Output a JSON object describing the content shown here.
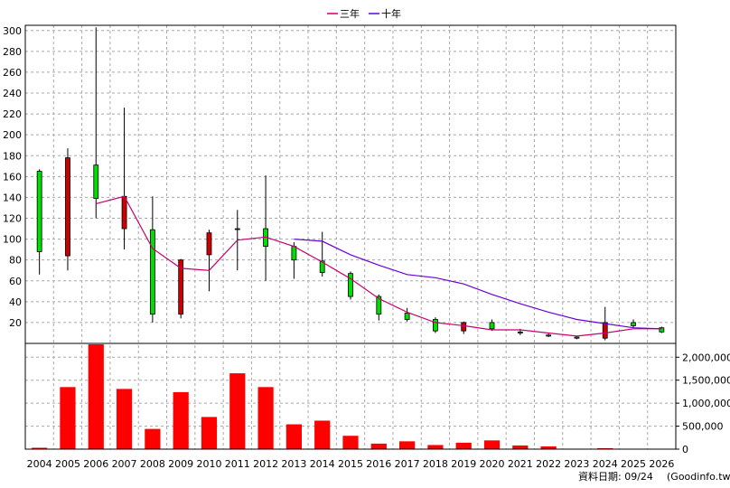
{
  "legend": {
    "items": [
      {
        "label": "三年",
        "color": "#c8006e"
      },
      {
        "label": "十年",
        "color": "#6a00d8"
      }
    ]
  },
  "footer": {
    "date_label": "資料日期: 09/24",
    "source": "(Goodinfo.tw)"
  },
  "chart_data": {
    "type": "candlestick",
    "categories": [
      "2004",
      "2005",
      "2006",
      "2007",
      "2008",
      "2009",
      "2010",
      "2011",
      "2012",
      "2013",
      "2014",
      "2015",
      "2016",
      "2017",
      "2018",
      "2019",
      "2020",
      "2021",
      "2022",
      "2023",
      "2024",
      "2025",
      "2026"
    ],
    "price_axis": {
      "ylim": [
        0,
        305
      ],
      "ticks": [
        20,
        40,
        60,
        80,
        100,
        120,
        140,
        160,
        180,
        200,
        220,
        240,
        260,
        280,
        300
      ]
    },
    "volume_axis": {
      "ylim": [
        0,
        2300000
      ],
      "ticks": [
        0,
        500000,
        1000000,
        1500000,
        2000000
      ],
      "tick_labels": [
        "0",
        "500,000",
        "1,000,000",
        "1,500,000",
        "2,000,000"
      ]
    },
    "colors": {
      "up": "#00dd00",
      "down": "#cc0000",
      "volume": "#ff0000"
    },
    "candles": [
      {
        "open": 88,
        "close": 165,
        "high": 167,
        "low": 66
      },
      {
        "open": 178,
        "close": 84,
        "high": 187,
        "low": 70
      },
      {
        "open": 139,
        "close": 171,
        "high": 303,
        "low": 120
      },
      {
        "open": 141,
        "close": 110,
        "high": 226,
        "low": 90
      },
      {
        "open": 28,
        "close": 109,
        "high": 141,
        "low": 20
      },
      {
        "open": 80,
        "close": 28,
        "high": 81,
        "low": 24
      },
      {
        "open": 106,
        "close": 85,
        "high": 109,
        "low": 50
      },
      {
        "open": 110,
        "close": 110,
        "high": 128,
        "low": 70
      },
      {
        "open": 93,
        "close": 110,
        "high": 161,
        "low": 60
      },
      {
        "open": 80,
        "close": 93,
        "high": 97,
        "low": 62
      },
      {
        "open": 68,
        "close": 79,
        "high": 107,
        "low": 64
      },
      {
        "open": 45,
        "close": 67,
        "high": 69,
        "low": 42
      },
      {
        "open": 28,
        "close": 45,
        "high": 47,
        "low": 22
      },
      {
        "open": 23,
        "close": 29,
        "high": 34,
        "low": 21
      },
      {
        "open": 12,
        "close": 23,
        "high": 25,
        "low": 10
      },
      {
        "open": 20,
        "close": 12,
        "high": 21,
        "low": 9
      },
      {
        "open": 14,
        "close": 20,
        "high": 23,
        "low": 12
      },
      {
        "open": 10,
        "close": 11,
        "high": 14,
        "low": 8
      },
      {
        "open": 7,
        "close": 8,
        "high": 10,
        "low": 6
      },
      {
        "open": 5,
        "close": 6,
        "high": 7,
        "low": 4
      },
      {
        "open": 20,
        "close": 5,
        "high": 35,
        "low": 3
      },
      {
        "open": 17,
        "close": 20,
        "high": 23,
        "low": 15
      },
      {
        "open": 11,
        "close": 15,
        "high": 16,
        "low": 10
      }
    ],
    "volumes": [
      30000,
      1350000,
      2280000,
      1310000,
      440000,
      1240000,
      700000,
      1650000,
      1350000,
      540000,
      620000,
      290000,
      120000,
      170000,
      90000,
      140000,
      190000,
      80000,
      60000,
      10000,
      20000,
      0,
      0
    ],
    "series": [
      {
        "name": "三年",
        "color": "#c8006e",
        "values": [
          null,
          null,
          134,
          141,
          91,
          72,
          70,
          99,
          102,
          93,
          78,
          62,
          43,
          30,
          20,
          17,
          13,
          13,
          10,
          7,
          10,
          14,
          14
        ]
      },
      {
        "name": "十年",
        "color": "#6a00d8",
        "values": [
          null,
          null,
          null,
          null,
          null,
          null,
          null,
          null,
          null,
          100,
          98,
          85,
          75,
          66,
          63,
          57,
          47,
          38,
          30,
          23,
          19,
          15,
          14
        ]
      }
    ],
    "grid": true
  }
}
